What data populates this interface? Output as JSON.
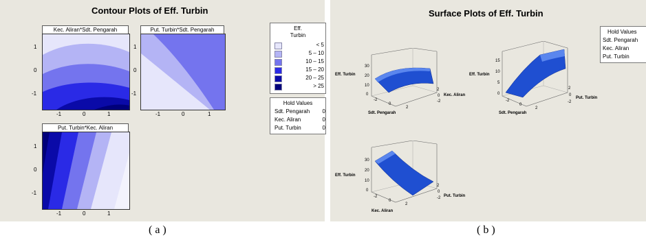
{
  "panel_a": {
    "title": "Contour Plots of Eff. Turbin",
    "caption": "( a )",
    "plots": [
      {
        "title": "Kec. Aliran*Sdt. Pengarah",
        "xticks": [
          "-1",
          "0",
          "1"
        ],
        "yticks": [
          "1",
          "0",
          "-1"
        ]
      },
      {
        "title": "Put. Turbin*Sdt. Pengarah",
        "xticks": [
          "-1",
          "0",
          "1"
        ],
        "yticks": [
          "1",
          "0",
          "-1"
        ]
      },
      {
        "title": "Put. Turbin*Kec. Aliran",
        "xticks": [
          "-1",
          "0",
          "1"
        ],
        "yticks": [
          "1",
          "0",
          "-1"
        ]
      }
    ],
    "legend": {
      "title_line1": "Eff.",
      "title_line2": "Turbin",
      "levels": [
        {
          "label": "<   5",
          "color": "#e6e6fb"
        },
        {
          "label": "5  –  10",
          "color": "#b4b4f5"
        },
        {
          "label": "10  –  15",
          "color": "#7474ee"
        },
        {
          "label": "15  –  20",
          "color": "#2a2ae6"
        },
        {
          "label": "20  –  25",
          "color": "#0a0aa8"
        },
        {
          "label": ">  25",
          "color": "#00007a"
        }
      ]
    },
    "hold_values": {
      "title": "Hold Values",
      "rows": [
        {
          "name": "Sdt. Pengarah",
          "value": "0"
        },
        {
          "name": "Kec. Aliran",
          "value": "0"
        },
        {
          "name": "Put. Turbin",
          "value": "0"
        }
      ]
    }
  },
  "panel_b": {
    "title": "Surface Plots of Eff. Turbin",
    "caption": "( b )",
    "hold_values": {
      "title": "Hold Values",
      "rows": [
        "Sdt. Pengarah",
        "Kec. Aliran",
        "Put. Turbin"
      ]
    },
    "surfaces": [
      {
        "z_label": "Eff. Turbin",
        "x_label": "Sdt. Pengarah",
        "y_label": "Kec. Aliran",
        "zticks": [
          "30",
          "20",
          "10",
          "0"
        ],
        "xticks": [
          "-2",
          "0",
          "2"
        ],
        "yticks": [
          "-2",
          "0",
          "2"
        ]
      },
      {
        "z_label": "Eff. Turbin",
        "x_label": "Sdt. Pengarah",
        "y_label": "Put. Turbin",
        "zticks": [
          "15",
          "10",
          "5",
          "0"
        ],
        "xticks": [
          "-2",
          "0",
          "2"
        ],
        "yticks": [
          "-2",
          "0",
          "2"
        ]
      },
      {
        "z_label": "Eff. Turbin",
        "x_label": "Kec. Aliran",
        "y_label": "Put. Turbin",
        "zticks": [
          "30",
          "20",
          "10",
          "0"
        ],
        "xticks": [
          "-2",
          "0",
          "2"
        ],
        "yticks": [
          "-2",
          "0",
          "2"
        ]
      }
    ]
  },
  "chart_data": [
    {
      "type": "contour",
      "title": "Kec. Aliran*Sdt. Pengarah",
      "xlim": [
        -1.7,
        1.7
      ],
      "ylim": [
        -1.7,
        1.7
      ],
      "description_levels": [
        "< 5",
        "5 – 10",
        "10 – 15",
        "15 – 20",
        "20 – 25",
        "> 25"
      ]
    },
    {
      "type": "contour",
      "title": "Put. Turbin*Sdt. Pengarah",
      "xlim": [
        -1.7,
        1.7
      ],
      "ylim": [
        -1.7,
        1.7
      ]
    },
    {
      "type": "contour",
      "title": "Put. Turbin*Kec. Aliran",
      "xlim": [
        -1.7,
        1.7
      ],
      "ylim": [
        -1.7,
        1.7
      ]
    }
  ]
}
